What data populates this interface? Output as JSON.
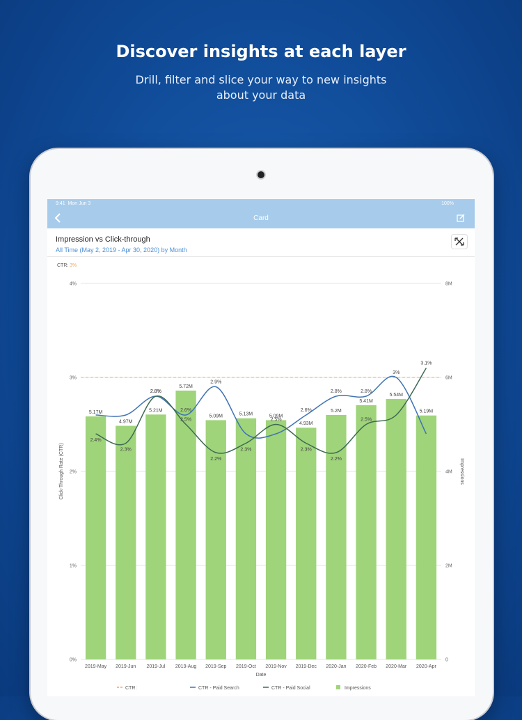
{
  "hero": {
    "title": "Discover insights at each layer",
    "subtitle": "Drill, filter and slice your way to new insights about your data"
  },
  "status": {
    "time": "9:41",
    "date": "Mon Jun 3",
    "battery": "100%"
  },
  "nav": {
    "title": "Card",
    "back_icon": "chevron-left-icon",
    "edit_icon": "edit-icon"
  },
  "card": {
    "title": "Impression vs Click-through",
    "subtitle": "All Time (May 2, 2019 - Apr 30, 2020) by Month",
    "expand_icon": "expand-icon"
  },
  "chart_data": {
    "type": "bar",
    "xlabel": "Date",
    "ylabel": "Click-Through Rate (CTR)",
    "y2label": "Impressions",
    "categories": [
      "2019-May",
      "2019-Jun",
      "2019-Jul",
      "2019-Aug",
      "2019-Sep",
      "2019-Oct",
      "2019-Nov",
      "2019-Dec",
      "2020-Jan",
      "2020-Feb",
      "2020-Mar",
      "2020-Apr"
    ],
    "ylim": [
      0,
      4
    ],
    "y_ticks": [
      "0%",
      "1%",
      "2%",
      "3%",
      "4%"
    ],
    "y2lim": [
      0,
      8000000
    ],
    "y2_ticks": [
      "0",
      "2M",
      "4M",
      "6M",
      "8M"
    ],
    "grid": true,
    "legend_position": "bottom",
    "reference_line": {
      "label": "CTR:",
      "value": 3,
      "value_label": "3%",
      "color": "#f0a860"
    },
    "series": [
      {
        "name": "Impressions",
        "kind": "bar",
        "axis": "right",
        "color": "#9fd47a",
        "values": [
          5170000,
          4970000,
          5210000,
          5720000,
          5090000,
          5130000,
          5090000,
          4930000,
          5200000,
          5410000,
          5540000,
          5190000
        ],
        "labels": [
          "5.17M",
          "4.97M",
          "5.21M",
          "5.72M",
          "5.09M",
          "5.13M",
          "5.09M",
          "4.93M",
          "5.2M",
          "5.41M",
          "5.54M",
          "5.19M"
        ]
      },
      {
        "name": "CTR - Paid Search",
        "kind": "line",
        "axis": "left",
        "color": "#3f73b4",
        "values": [
          2.6,
          2.6,
          2.8,
          2.6,
          2.9,
          2.4,
          2.4,
          2.6,
          2.8,
          2.8,
          3.0,
          2.4
        ],
        "labels": [
          "",
          "",
          "2.8%",
          "2.6%",
          "2.9%",
          "",
          "",
          "2.6%",
          "2.8%",
          "2.8%",
          "3%",
          ""
        ]
      },
      {
        "name": "CTR - Paid Social",
        "kind": "line",
        "axis": "left",
        "color": "#3d6a52",
        "values": [
          2.4,
          2.3,
          2.8,
          2.5,
          2.2,
          2.3,
          2.5,
          2.3,
          2.2,
          2.5,
          2.6,
          3.1
        ],
        "labels": [
          "2.4%",
          "2.3%",
          "2.8%",
          "2.5%",
          "2.2%",
          "2.3%",
          "2.5%",
          "2.3%",
          "2.2%",
          "2.5%",
          "",
          "3.1%"
        ]
      }
    ]
  }
}
